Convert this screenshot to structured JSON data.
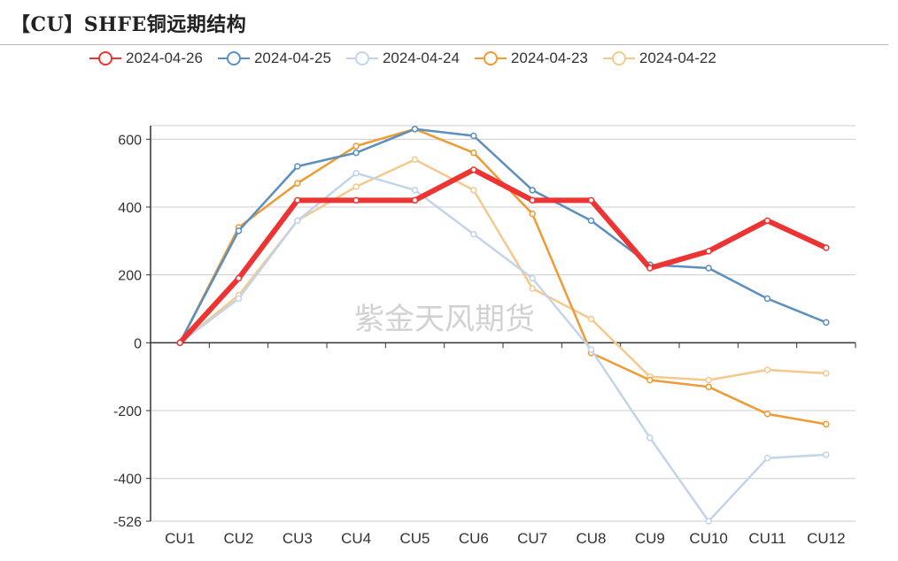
{
  "title": "【CU】SHFE铜远期结构",
  "watermark": "紫金天风期货",
  "chart_data": {
    "type": "line",
    "title": "【CU】SHFE铜远期结构",
    "categories": [
      "CU1",
      "CU2",
      "CU3",
      "CU4",
      "CU5",
      "CU6",
      "CU7",
      "CU8",
      "CU9",
      "CU10",
      "CU11",
      "CU12"
    ],
    "ylim": [
      -526,
      640
    ],
    "yticks": [
      600,
      400,
      200,
      0,
      -200,
      -400,
      -526
    ],
    "ytick_labels": [
      "600",
      "400",
      "200",
      "0",
      "-200",
      "-400",
      "-526"
    ],
    "grid": true,
    "legend_position": "top",
    "series": [
      {
        "name": "2024-04-26",
        "color": "#ee3333",
        "width": 6,
        "values": [
          0,
          190,
          420,
          420,
          420,
          510,
          420,
          420,
          220,
          270,
          360,
          280
        ]
      },
      {
        "name": "2024-04-25",
        "color": "#5b8fbf",
        "width": 2.5,
        "values": [
          0,
          330,
          520,
          560,
          630,
          610,
          450,
          360,
          230,
          220,
          130,
          60
        ]
      },
      {
        "name": "2024-04-24",
        "color": "#c3d4ea",
        "width": 2.5,
        "values": [
          0,
          130,
          360,
          500,
          450,
          320,
          190,
          -20,
          -280,
          -526,
          -340,
          -330
        ]
      },
      {
        "name": "2024-04-23",
        "color": "#f09a33",
        "width": 2.5,
        "values": [
          0,
          340,
          470,
          580,
          630,
          560,
          380,
          -30,
          -110,
          -130,
          -210,
          -240
        ]
      },
      {
        "name": "2024-04-22",
        "color": "#f5c98e",
        "width": 2.5,
        "values": [
          0,
          140,
          360,
          460,
          540,
          450,
          160,
          70,
          -100,
          -110,
          -80,
          -90
        ]
      }
    ]
  }
}
